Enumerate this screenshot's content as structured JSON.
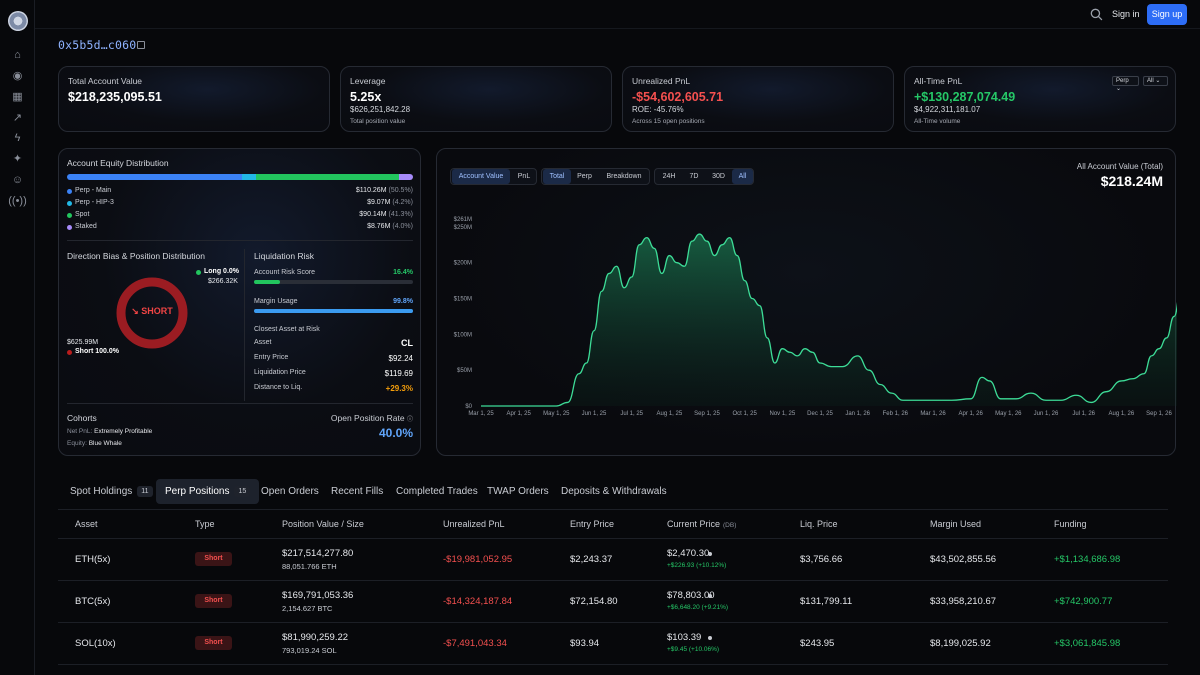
{
  "header": {
    "signin_label": "Sign in",
    "signup_label": "Sign up"
  },
  "account": {
    "address": "0x5b5d…c060"
  },
  "stats": {
    "total_value": {
      "label": "Total Account Value",
      "value": "$218,235,095.51"
    },
    "leverage": {
      "label": "Leverage",
      "value": "5.25x",
      "sub": "$626,251,842.28",
      "sub2": "Total position value"
    },
    "unrealized": {
      "label": "Unrealized PnL",
      "value": "-$54,602,605.71",
      "sub": "ROE: -45.76%",
      "sub2": "Across 15 open positions"
    },
    "alltime": {
      "label": "All-Time PnL",
      "value": "+$130,287,074.49",
      "sub": "$4,922,311,181.07",
      "sub2": "All-Time volume",
      "select1": "Perp",
      "select2": "All"
    }
  },
  "equity": {
    "title": "Account Equity Distribution",
    "items": [
      {
        "label": "Perp - Main",
        "value": "$110.26M",
        "pct": "(50.5%)",
        "color": "#3b82f6"
      },
      {
        "label": "Perp - HIP-3",
        "value": "$9.07M",
        "pct": "(4.2%)",
        "color": "#22b8e6"
      },
      {
        "label": "Spot",
        "value": "$90.14M",
        "pct": "(41.3%)",
        "color": "#22c55e"
      },
      {
        "label": "Staked",
        "value": "$8.76M",
        "pct": "(4.0%)",
        "color": "#a78bfa"
      }
    ]
  },
  "direction": {
    "title": "Direction Bias & Position Distribution",
    "center": "↘ SHORT",
    "long_label": "Long 0.0%",
    "long_value": "$266.32K",
    "short_value": "$625.99M",
    "short_label": "Short 100.0%",
    "short_fraction": 1.0
  },
  "liquidation": {
    "title": "Liquidation Risk",
    "risk_label": "Account Risk Score",
    "risk_value": "16.4%",
    "risk_fraction": 0.164,
    "margin_label": "Margin Usage",
    "margin_value": "99.8%",
    "margin_fraction": 0.998,
    "closest_title": "Closest Asset at Risk",
    "rows": [
      {
        "label": "Asset",
        "value": "CL"
      },
      {
        "label": "Entry Price",
        "value": "$92.24"
      },
      {
        "label": "Liquidation Price",
        "value": "$119.69"
      },
      {
        "label": "Distance to Liq.",
        "value": "+29.3%"
      }
    ]
  },
  "cohorts": {
    "title": "Cohorts",
    "net_label": "Net PnL:",
    "net_value": "Extremely Profitable",
    "equity_label": "Equity:",
    "equity_value": "Blue Whale",
    "open_rate_label": "Open Position Rate",
    "open_rate_value": "40.0%"
  },
  "chart_controls": {
    "group1": [
      "Account Value",
      "PnL"
    ],
    "group2": [
      "Total",
      "Perp",
      "Breakdown"
    ],
    "group3": [
      "24H",
      "7D",
      "30D",
      "All"
    ]
  },
  "chart_header": {
    "label": "All Account Value (Total)",
    "value": "$218.24M"
  },
  "chart_data": {
    "type": "area",
    "x_ticks": [
      "Mar 1, 25",
      "Apr 1, 25",
      "May 1, 25",
      "Jun 1, 25",
      "Jul 1, 25",
      "Aug 1, 25",
      "Sep 1, 25",
      "Oct 1, 25",
      "Nov 1, 25",
      "Dec 1, 25",
      "Jan 1, 26",
      "Feb 1, 26",
      "Mar 1, 26",
      "Apr 1, 26",
      "May 1, 26",
      "Jun 1, 26",
      "Jul 1, 26",
      "Aug 1, 26",
      "Sep 1, 26"
    ],
    "y_ticks": [
      "$0",
      "$50M",
      "$100M",
      "$150M",
      "$200M",
      "$250M",
      "$261M"
    ],
    "ylim": [
      0,
      261
    ],
    "x": [
      0,
      0.5,
      1,
      1.5,
      2,
      2.3,
      2.6,
      2.8,
      3,
      3.2,
      3.4,
      3.6,
      3.8,
      4,
      4.2,
      4.4,
      4.6,
      4.8,
      5,
      5.2,
      5.4,
      5.6,
      5.8,
      6,
      6.2,
      6.4,
      6.6,
      6.8,
      7,
      7.2,
      7.4,
      7.6,
      7.8,
      8,
      8.2,
      8.4,
      8.6,
      8.8,
      9,
      9.3,
      9.6,
      10,
      10.3,
      10.6,
      10.9,
      11.2,
      11.5,
      12,
      12.5,
      13,
      13.3,
      13.5,
      13.8,
      14.2,
      14.6,
      15,
      15.4,
      15.8,
      16.2,
      16.6,
      17,
      17.3,
      17.6,
      17.8,
      18,
      18.2,
      18.4,
      18.6,
      18.8,
      19
    ],
    "values": [
      0,
      0,
      0,
      0,
      0,
      5,
      45,
      60,
      105,
      160,
      185,
      195,
      165,
      180,
      225,
      235,
      220,
      185,
      210,
      200,
      195,
      230,
      240,
      230,
      210,
      225,
      235,
      210,
      175,
      150,
      140,
      95,
      60,
      80,
      75,
      70,
      80,
      75,
      60,
      55,
      55,
      70,
      50,
      30,
      18,
      8,
      8,
      8,
      8,
      10,
      40,
      35,
      10,
      10,
      18,
      8,
      8,
      15,
      5,
      20,
      35,
      38,
      45,
      70,
      80,
      95,
      125,
      170,
      210,
      220
    ],
    "ylabel": "",
    "xlabel": ""
  },
  "tabs": [
    {
      "label": "Spot Holdings",
      "badge": "11"
    },
    {
      "label": "Perp Positions",
      "badge": "15"
    },
    {
      "label": "Open Orders",
      "badge": ""
    },
    {
      "label": "Recent Fills",
      "badge": ""
    },
    {
      "label": "Completed Trades",
      "badge": ""
    },
    {
      "label": "TWAP Orders",
      "badge": ""
    },
    {
      "label": "Deposits & Withdrawals",
      "badge": ""
    }
  ],
  "table": {
    "headers": [
      "Asset",
      "Type",
      "Position Value / Size",
      "Unrealized PnL",
      "Entry Price",
      "Current Price",
      "Liq. Price",
      "Margin Used",
      "Funding"
    ],
    "current_price_tag": "(DB)",
    "rows": [
      {
        "asset": "ETH(5x)",
        "type": "Short",
        "value": "$217,514,277.80",
        "size": "88,051.766 ETH",
        "pnl": "-$19,981,052.95",
        "entry": "$2,243.37",
        "current": "$2,470.30",
        "change": "+$226.93 (+10.12%)",
        "liq": "$3,756.66",
        "margin": "$43,502,855.56",
        "funding": "+$1,134,686.98"
      },
      {
        "asset": "BTC(5x)",
        "type": "Short",
        "value": "$169,791,053.36",
        "size": "2,154.627 BTC",
        "pnl": "-$14,324,187.84",
        "entry": "$72,154.80",
        "current": "$78,803.00",
        "change": "+$6,648.20 (+9.21%)",
        "liq": "$131,799.11",
        "margin": "$33,958,210.67",
        "funding": "+$742,900.77"
      },
      {
        "asset": "SOL(10x)",
        "type": "Short",
        "value": "$81,990,259.22",
        "size": "793,019.24 SOL",
        "pnl": "-$7,491,043.34",
        "entry": "$93.94",
        "current": "$103.39",
        "change": "+$9.45 (+10.06%)",
        "liq": "$243.95",
        "margin": "$8,199,025.92",
        "funding": "+$3,061,845.98"
      }
    ]
  }
}
